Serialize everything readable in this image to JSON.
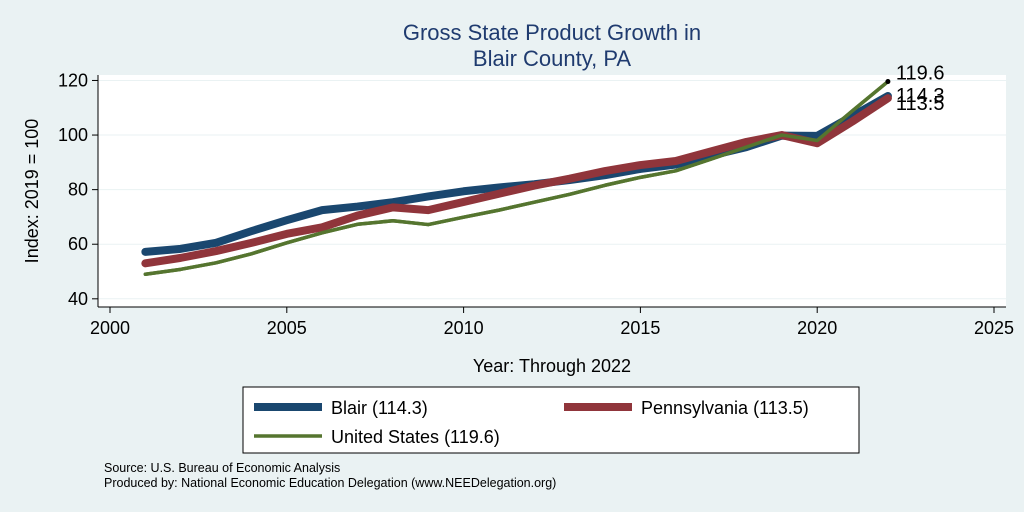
{
  "chart_data": {
    "type": "line",
    "title": [
      "Gross State Product Growth in",
      "Blair County, PA"
    ],
    "xlabel": "Year: Through 2022",
    "ylabel": "Index: 2019 = 100",
    "xlim": [
      2000,
      2025
    ],
    "ylim": [
      37,
      122
    ],
    "xticks": [
      2000,
      2005,
      2010,
      2015,
      2020,
      2025
    ],
    "yticks": [
      40,
      60,
      80,
      100,
      120
    ],
    "grid": "horizontal",
    "x": [
      2001,
      2002,
      2003,
      2004,
      2005,
      2006,
      2007,
      2008,
      2009,
      2010,
      2011,
      2012,
      2013,
      2014,
      2015,
      2016,
      2017,
      2018,
      2019,
      2020,
      2021,
      2022
    ],
    "series": [
      {
        "name": "Blair",
        "legend": "Blair  (114.3)",
        "color": "#1a476f",
        "values": [
          57.2,
          58.3,
          60.5,
          64.8,
          68.8,
          72.5,
          73.8,
          75.4,
          77.5,
          79.4,
          80.8,
          82.0,
          83.5,
          85.3,
          87.6,
          89.2,
          92.5,
          95.6,
          99.8,
          99.7,
          107.0,
          114.3
        ],
        "end_label": "114.3"
      },
      {
        "name": "Pennsylvania",
        "legend": "Pennsylvania (113.5)",
        "color": "#90353b",
        "values": [
          53.0,
          55.0,
          57.5,
          60.5,
          63.8,
          66.2,
          70.5,
          73.5,
          72.5,
          75.5,
          78.5,
          81.5,
          84.0,
          86.8,
          89.0,
          90.5,
          94.0,
          97.5,
          100.0,
          97.0,
          105.0,
          113.5
        ],
        "end_label": "113.5"
      },
      {
        "name": "United States",
        "legend": "United States (119.6)",
        "color": "#55752f",
        "values": [
          49.0,
          50.8,
          53.2,
          56.5,
          60.5,
          64.2,
          67.3,
          68.6,
          67.2,
          69.9,
          72.5,
          75.4,
          78.3,
          81.6,
          84.5,
          86.9,
          91.2,
          95.6,
          100.0,
          98.0,
          108.9,
          119.6
        ],
        "end_label": "119.6"
      }
    ],
    "notes": [
      "Source: U.S. Bureau of Economic Analysis",
      "Produced by: National Economic Education Delegation (www.NEEDelegation.org)"
    ]
  },
  "colors": {
    "background": "#eaf2f3",
    "plot_area": "#ffffff",
    "gridline": "#eaf2f3",
    "title": "#1f3b6f"
  }
}
